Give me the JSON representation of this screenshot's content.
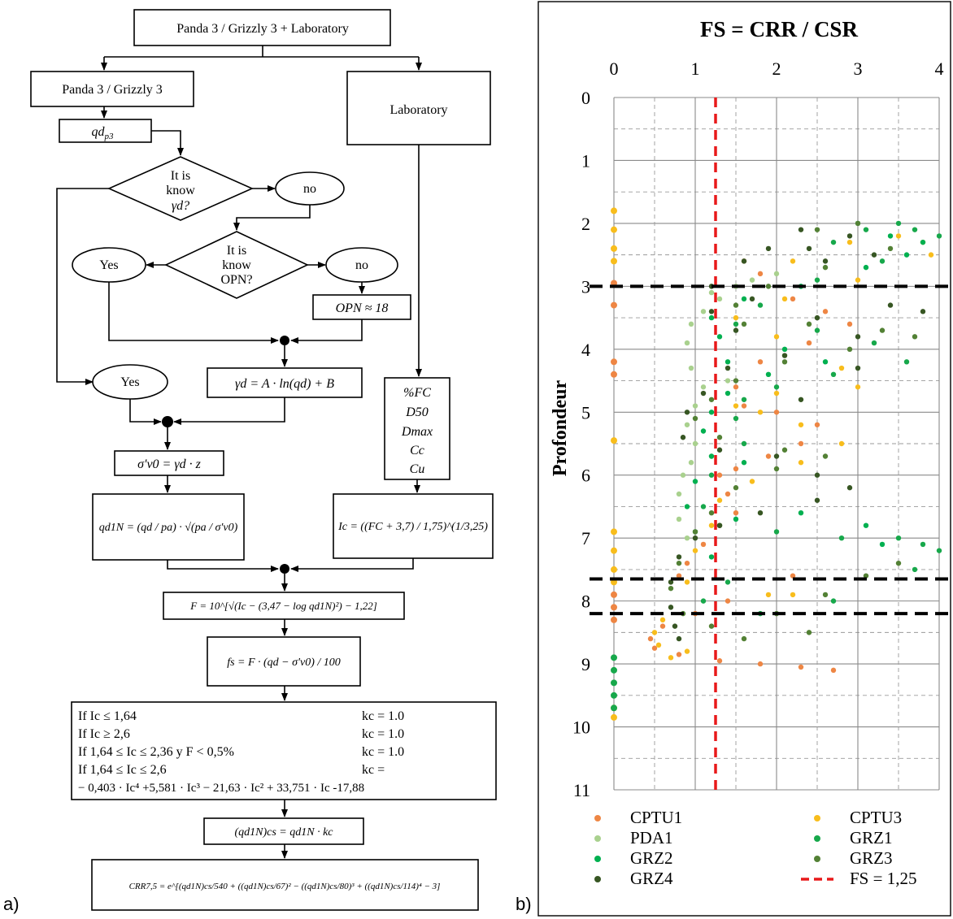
{
  "panel_a_label": "a)",
  "panel_b_label": "b)",
  "flowchart": {
    "top": "Panda 3 / Grizzly 3 + Laboratory",
    "left_branch": "Panda 3 / Grizzly 3",
    "right_branch": "Laboratory",
    "qd": "qd",
    "qd_sub": "p3",
    "diamond1": [
      "It is",
      "know",
      "γd?"
    ],
    "no1": "no",
    "diamond2": [
      "It is",
      "know",
      "OPN?"
    ],
    "yes_opn": "Yes",
    "no2": "no",
    "opn_default": "OPN ≈ 18",
    "yes_gamma": "Yes",
    "gamma_formula": "γd = A · ln(qd) + B",
    "lab_params": [
      "%FC",
      "D50",
      "Dmax",
      "Cc",
      "Cu"
    ],
    "sigma_formula": "σ'v0 = γd · z",
    "qd1n_formula": "qd1N = (qd / pa) · √(pa / σ'v0)",
    "ic_formula": "Ic = ((FC + 3,7) / 1,75)^(1/3,25)",
    "f_formula": "F = 10^[√(Ic − (3,47 − log qd1N)²) − 1,22]",
    "fs_formula": "fs = F · (qd − σ'v0) / 100",
    "kc_rules": [
      {
        "cond": "If   Ic ≤ 1,64",
        "res": "kc = 1.0"
      },
      {
        "cond": "If   Ic ≥ 2,6",
        "res": "kc = 1.0"
      },
      {
        "cond": "If   1,64 ≤ Ic ≤ 2,36  y  F < 0,5%",
        "res": "kc = 1.0"
      },
      {
        "cond": "If   1,64 ≤ Ic ≤ 2,6",
        "res": "kc ="
      }
    ],
    "kc_poly": "− 0,403 · Ic⁴ +5,581 · Ic³ − 21,63 · Ic² + 33,751 · Ic -17,88",
    "qcs_formula": "(qd1N)cs = qd1N · kc",
    "crr_formula": "CRR7,5 = e^[(qd1N)cs/540 + ((qd1N)cs/67)² − ((qd1N)cs/80)³ + ((qd1N)cs/114)⁴ − 3]"
  },
  "chart_data": {
    "type": "scatter",
    "title": "FS = CRR / CSR",
    "xlabel": "",
    "ylabel": "Profondeur",
    "xlim": [
      0,
      4
    ],
    "ylim": [
      0,
      11
    ],
    "x_ticks": [
      "0",
      "1",
      "2",
      "3",
      "4"
    ],
    "y_ticks": [
      "0",
      "1",
      "2",
      "3",
      "4",
      "5",
      "6",
      "7",
      "8",
      "9",
      "10",
      "11"
    ],
    "y_inverted": true,
    "grid": true,
    "reference_lines": [
      {
        "name": "FS = 1,25",
        "orientation": "vertical",
        "value": 1.25,
        "color": "#e8191a"
      },
      {
        "orientation": "horizontal",
        "value": 3.0,
        "color": "#000000"
      },
      {
        "orientation": "horizontal",
        "value": 7.65,
        "color": "#000000"
      },
      {
        "orientation": "horizontal",
        "value": 8.2,
        "color": "#000000"
      }
    ],
    "series": [
      {
        "name": "CPTU1",
        "color": "#ee8644",
        "points": [
          [
            0,
            2.95
          ],
          [
            0,
            3.3
          ],
          [
            0,
            4.2
          ],
          [
            0,
            4.4
          ],
          [
            0,
            7.9
          ],
          [
            0,
            8.1
          ],
          [
            0,
            8.3
          ],
          [
            1.6,
            2.6
          ],
          [
            1.8,
            2.8
          ],
          [
            2.2,
            3.2
          ],
          [
            2.6,
            3.4
          ],
          [
            2.9,
            3.6
          ],
          [
            2.4,
            3.9
          ],
          [
            1.8,
            4.2
          ],
          [
            1.5,
            4.6
          ],
          [
            1.6,
            4.9
          ],
          [
            2.0,
            5.0
          ],
          [
            2.5,
            5.2
          ],
          [
            2.3,
            5.5
          ],
          [
            1.9,
            5.7
          ],
          [
            1.5,
            5.9
          ],
          [
            1.3,
            6.0
          ],
          [
            1.4,
            6.3
          ],
          [
            1.5,
            6.6
          ],
          [
            1.3,
            6.8
          ],
          [
            1.1,
            7.1
          ],
          [
            0.9,
            7.4
          ],
          [
            0.8,
            7.6
          ],
          [
            0.6,
            8.4
          ],
          [
            0.45,
            8.6
          ],
          [
            0.5,
            8.75
          ],
          [
            0.8,
            8.85
          ],
          [
            1.3,
            8.95
          ],
          [
            1.8,
            9.0
          ],
          [
            2.3,
            9.05
          ],
          [
            2.7,
            9.1
          ],
          [
            1.0,
            8.2
          ],
          [
            1.4,
            8.0
          ],
          [
            2.2,
            7.6
          ]
        ]
      },
      {
        "name": "CPTU3",
        "color": "#f8bd1c",
        "points": [
          [
            0,
            1.8
          ],
          [
            0,
            2.1
          ],
          [
            0,
            2.4
          ],
          [
            0,
            2.6
          ],
          [
            0,
            5.45
          ],
          [
            0,
            6.9
          ],
          [
            0,
            7.2
          ],
          [
            0,
            7.5
          ],
          [
            0,
            7.7
          ],
          [
            0,
            9.7
          ],
          [
            0,
            9.85
          ],
          [
            2.2,
            2.6
          ],
          [
            2.9,
            2.3
          ],
          [
            3.5,
            2.2
          ],
          [
            3.8,
            2.3
          ],
          [
            3.9,
            2.5
          ],
          [
            3.0,
            2.9
          ],
          [
            2.1,
            3.2
          ],
          [
            1.5,
            3.5
          ],
          [
            2.0,
            3.8
          ],
          [
            2.8,
            4.3
          ],
          [
            3.0,
            4.6
          ],
          [
            2.0,
            4.7
          ],
          [
            1.5,
            4.9
          ],
          [
            1.8,
            5.0
          ],
          [
            2.3,
            5.2
          ],
          [
            2.8,
            5.5
          ],
          [
            2.3,
            5.8
          ],
          [
            1.7,
            6.1
          ],
          [
            1.3,
            6.4
          ],
          [
            1.2,
            6.8
          ],
          [
            1.0,
            7.2
          ],
          [
            0.9,
            7.7
          ],
          [
            0.6,
            8.3
          ],
          [
            0.5,
            8.5
          ],
          [
            0.55,
            8.7
          ],
          [
            0.7,
            8.9
          ],
          [
            1.9,
            7.9
          ],
          [
            2.2,
            7.9
          ],
          [
            0.9,
            8.8
          ]
        ]
      },
      {
        "name": "PDA1",
        "color": "#a9d18e",
        "points": [
          [
            1.5,
            3.0
          ],
          [
            1.3,
            3.2
          ],
          [
            1.1,
            3.4
          ],
          [
            0.95,
            3.6
          ],
          [
            0.9,
            3.9
          ],
          [
            0.95,
            4.3
          ],
          [
            1.1,
            4.6
          ],
          [
            1.0,
            4.9
          ],
          [
            0.9,
            5.2
          ],
          [
            1.0,
            5.5
          ],
          [
            0.95,
            5.8
          ],
          [
            0.85,
            6.0
          ],
          [
            0.8,
            6.3
          ],
          [
            0.8,
            6.7
          ],
          [
            0.9,
            7.0
          ],
          [
            1.2,
            3.1
          ],
          [
            1.7,
            2.9
          ],
          [
            2.0,
            2.8
          ],
          [
            1.4,
            4.5
          ],
          [
            1.2,
            5.7
          ]
        ]
      },
      {
        "name": "GRZ1",
        "color": "#17a84b",
        "points": [
          [
            0,
            8.9
          ],
          [
            0,
            9.1
          ],
          [
            0,
            9.3
          ],
          [
            0,
            9.5
          ],
          [
            0,
            9.7
          ],
          [
            2.7,
            2.3
          ],
          [
            3.1,
            2.1
          ],
          [
            3.5,
            2.0
          ],
          [
            3.7,
            2.1
          ],
          [
            4.0,
            2.2
          ],
          [
            3.3,
            2.6
          ],
          [
            2.5,
            2.9
          ],
          [
            1.8,
            3.3
          ],
          [
            1.5,
            3.6
          ],
          [
            2.5,
            3.7
          ],
          [
            3.2,
            3.9
          ],
          [
            3.6,
            4.2
          ],
          [
            2.7,
            4.4
          ],
          [
            2.0,
            4.6
          ],
          [
            1.6,
            4.8
          ],
          [
            1.5,
            5.1
          ],
          [
            1.6,
            5.5
          ],
          [
            1.2,
            6.0
          ],
          [
            1.1,
            6.5
          ],
          [
            1.3,
            6.8
          ],
          [
            2.0,
            6.9
          ],
          [
            2.8,
            7.0
          ],
          [
            3.5,
            7.0
          ],
          [
            3.8,
            7.1
          ],
          [
            4.0,
            7.2
          ],
          [
            3.7,
            7.5
          ],
          [
            1.4,
            7.7
          ],
          [
            1.1,
            8.0
          ],
          [
            1.8,
            8.2
          ],
          [
            2.7,
            8.0
          ]
        ]
      },
      {
        "name": "GRZ2",
        "color": "#00b050",
        "points": [
          [
            3.0,
            2.0
          ],
          [
            3.4,
            2.2
          ],
          [
            3.8,
            2.3
          ],
          [
            3.6,
            2.5
          ],
          [
            3.1,
            2.7
          ],
          [
            2.3,
            3.0
          ],
          [
            1.6,
            3.2
          ],
          [
            1.2,
            3.5
          ],
          [
            1.3,
            3.8
          ],
          [
            2.1,
            4.0
          ],
          [
            2.6,
            4.2
          ],
          [
            1.9,
            4.4
          ],
          [
            1.4,
            4.7
          ],
          [
            1.2,
            5.0
          ],
          [
            1.1,
            5.3
          ],
          [
            1.2,
            5.7
          ],
          [
            1.0,
            6.1
          ],
          [
            0.9,
            6.5
          ],
          [
            1.0,
            6.9
          ],
          [
            1.2,
            7.3
          ],
          [
            1.5,
            6.7
          ],
          [
            2.3,
            6.6
          ],
          [
            3.1,
            6.8
          ],
          [
            3.3,
            7.1
          ],
          [
            1.6,
            5.8
          ],
          [
            1.4,
            4.2
          ]
        ]
      },
      {
        "name": "GRZ3",
        "color": "#538135",
        "points": [
          [
            2.5,
            2.1
          ],
          [
            3.0,
            2.0
          ],
          [
            3.4,
            2.4
          ],
          [
            2.6,
            2.7
          ],
          [
            1.9,
            3.0
          ],
          [
            1.5,
            3.3
          ],
          [
            1.6,
            3.6
          ],
          [
            2.4,
            3.6
          ],
          [
            3.3,
            3.7
          ],
          [
            3.7,
            3.8
          ],
          [
            2.9,
            4.0
          ],
          [
            2.1,
            4.2
          ],
          [
            1.5,
            4.5
          ],
          [
            1.2,
            4.8
          ],
          [
            1.0,
            5.1
          ],
          [
            1.3,
            5.4
          ],
          [
            2.1,
            5.6
          ],
          [
            2.6,
            5.7
          ],
          [
            2.0,
            5.9
          ],
          [
            1.5,
            6.2
          ],
          [
            1.2,
            6.6
          ],
          [
            1.0,
            6.9
          ],
          [
            0.8,
            7.4
          ],
          [
            0.7,
            7.8
          ],
          [
            0.85,
            8.2
          ],
          [
            1.2,
            8.4
          ],
          [
            2.0,
            8.2
          ],
          [
            2.6,
            7.9
          ],
          [
            3.1,
            7.6
          ],
          [
            3.5,
            7.4
          ],
          [
            2.4,
            8.5
          ],
          [
            1.6,
            8.6
          ]
        ]
      },
      {
        "name": "GRZ4",
        "color": "#375623",
        "points": [
          [
            1.6,
            2.6
          ],
          [
            1.9,
            2.4
          ],
          [
            2.3,
            2.1
          ],
          [
            2.9,
            2.2
          ],
          [
            3.2,
            2.5
          ],
          [
            2.6,
            2.6
          ],
          [
            1.7,
            3.2
          ],
          [
            1.2,
            3.4
          ],
          [
            1.5,
            3.7
          ],
          [
            2.5,
            3.5
          ],
          [
            3.4,
            3.3
          ],
          [
            3.8,
            3.4
          ],
          [
            3.0,
            3.8
          ],
          [
            2.1,
            4.1
          ],
          [
            1.4,
            4.3
          ],
          [
            1.1,
            4.7
          ],
          [
            0.9,
            5.0
          ],
          [
            0.85,
            5.4
          ],
          [
            1.3,
            5.6
          ],
          [
            2.0,
            5.7
          ],
          [
            2.5,
            6.0
          ],
          [
            2.9,
            6.2
          ],
          [
            2.5,
            6.4
          ],
          [
            1.8,
            6.6
          ],
          [
            1.3,
            6.8
          ],
          [
            1.0,
            7.0
          ],
          [
            0.8,
            7.3
          ],
          [
            0.7,
            7.7
          ],
          [
            0.7,
            8.1
          ],
          [
            0.75,
            8.4
          ],
          [
            0.8,
            8.6
          ],
          [
            1.2,
            3.0
          ],
          [
            2.4,
            2.4
          ],
          [
            3.0,
            4.3
          ],
          [
            2.3,
            4.8
          ]
        ]
      }
    ]
  }
}
